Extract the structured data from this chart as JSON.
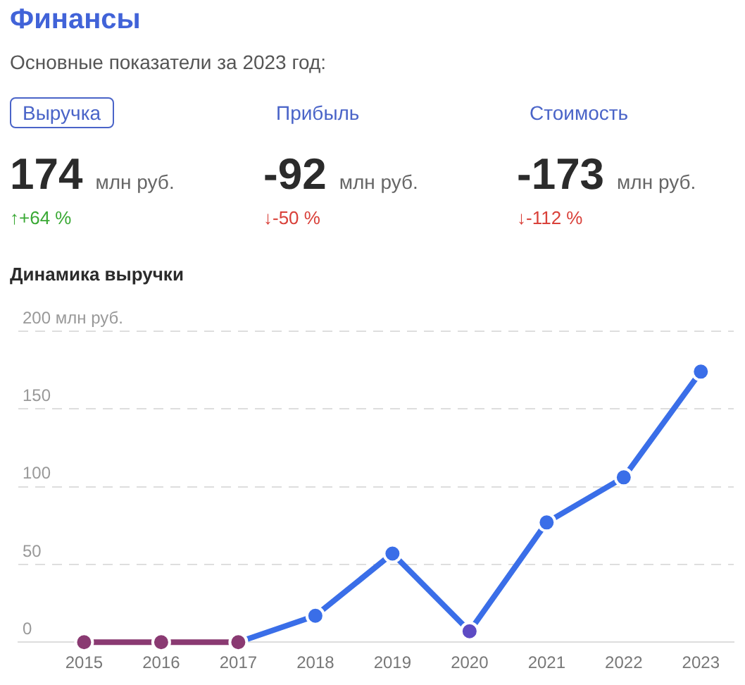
{
  "chart_data": [
    {
      "type": "other",
      "title": "Финансы",
      "subtitle": "Основные показатели за 2023 год:",
      "annotations": [
        "Выручка",
        "174",
        "млн руб.",
        "↑+64 %",
        "Прибыль",
        "-92",
        "млн руб.",
        "↓-50 %",
        "Стоимость",
        "-173",
        "млн руб.",
        "↓-112 %"
      ]
    },
    {
      "type": "line",
      "title": "Динамика выручки",
      "categories": [
        "2015",
        "2016",
        "2017",
        "2018",
        "2019",
        "2020",
        "2021",
        "2022",
        "2023"
      ],
      "series": [
        {
          "color": "#8a3a72",
          "values": [
            0,
            0,
            0,
            null,
            null,
            null,
            null,
            null,
            null
          ]
        },
        {
          "color": "#3a6ee8",
          "colors": [
            null,
            null,
            "#8a3a72",
            "#3a6ee8",
            "#3a6ee8",
            "#5d4bc4",
            "#3a6ee8",
            "#3a6ee8",
            "#3a6ee8"
          ],
          "values": [
            null,
            null,
            0,
            17,
            57,
            7,
            77,
            106,
            174
          ]
        }
      ],
      "ylim": [
        0,
        200
      ],
      "yticks": [
        0,
        50,
        100,
        150,
        {
          "value": 200,
          "label": "200 млн руб."
        }
      ],
      "grid": "y",
      "marker": "circle",
      "line_style": "solid"
    }
  ]
}
